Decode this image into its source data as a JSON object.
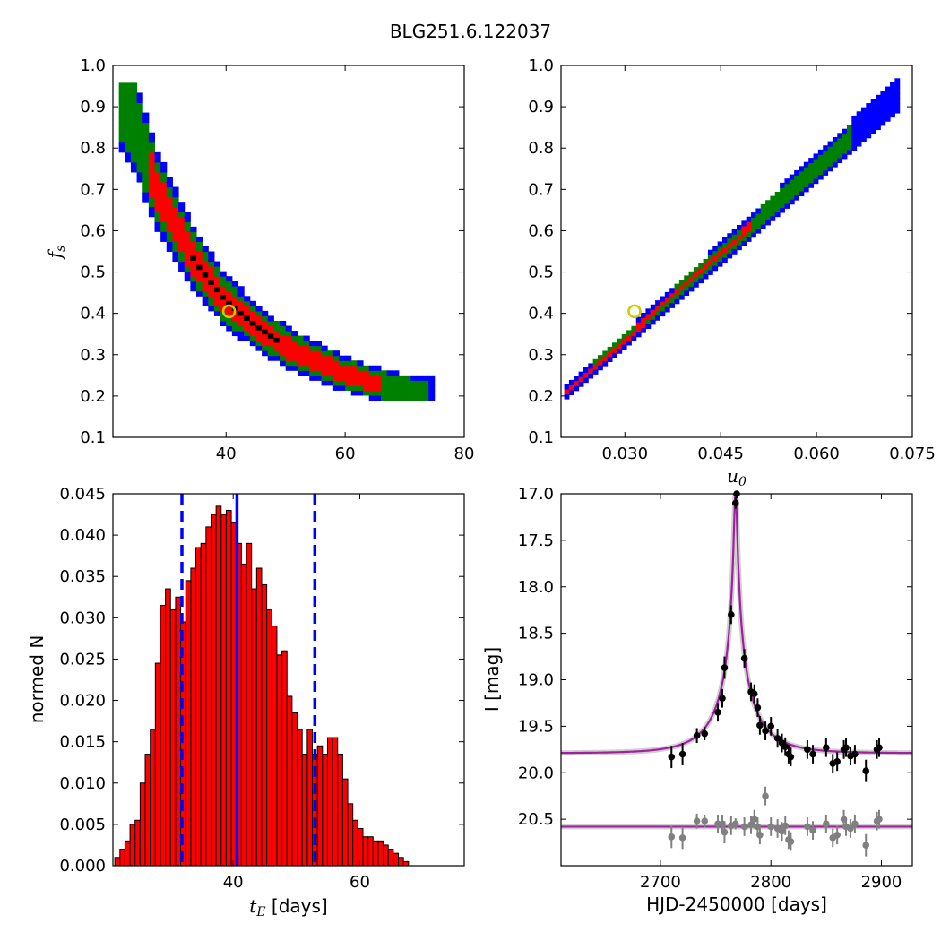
{
  "title": "BLG251.6.122037",
  "chart_data": [
    {
      "type": "heatmap",
      "panel": "top-left",
      "xlabel": "",
      "ylabel": "f_s",
      "xlim": [
        21,
        80
      ],
      "ylim": [
        0.1,
        1.0
      ],
      "xticks": [
        40,
        60,
        80
      ],
      "yticks": [
        0.1,
        0.2,
        0.3,
        0.4,
        0.5,
        0.6,
        0.7,
        0.8,
        0.9,
        1.0
      ],
      "levels": [
        {
          "name": "outer",
          "color": "#0000ff"
        },
        {
          "name": "middle",
          "color": "#008000"
        },
        {
          "name": "inner",
          "color": "#ff0000"
        },
        {
          "name": "core",
          "color": "#000000"
        }
      ],
      "ridge": [
        [
          22,
          0.93
        ],
        [
          25,
          0.85
        ],
        [
          28,
          0.71
        ],
        [
          32,
          0.6
        ],
        [
          35,
          0.52
        ],
        [
          40,
          0.43
        ],
        [
          45,
          0.37
        ],
        [
          50,
          0.32
        ],
        [
          55,
          0.285
        ],
        [
          60,
          0.255
        ],
        [
          65,
          0.23
        ],
        [
          70,
          0.215
        ],
        [
          75,
          0.205
        ]
      ],
      "best_fit": {
        "x": 40.5,
        "y": 0.405
      }
    },
    {
      "type": "heatmap",
      "panel": "top-right",
      "xlabel": "u_0",
      "ylabel": "",
      "xlim": [
        0.02,
        0.075
      ],
      "ylim": [
        0.1,
        1.0
      ],
      "xticks": [
        0.03,
        0.045,
        0.06,
        0.075
      ],
      "xtick_labels": [
        "0.030",
        "0.045",
        "0.060",
        "0.075"
      ],
      "yticks": [
        0.1,
        0.2,
        0.3,
        0.4,
        0.5,
        0.6,
        0.7,
        0.8,
        0.9,
        1.0
      ],
      "ridge_start": [
        0.0205,
        0.205
      ],
      "ridge_end": [
        0.073,
        0.935
      ],
      "best_fit": {
        "x": 0.0315,
        "y": 0.405
      }
    },
    {
      "type": "bar",
      "panel": "bottom-left",
      "xlabel": "t_E [days]",
      "ylabel": "normed N",
      "xlim": [
        21,
        76.5
      ],
      "ylim": [
        0,
        0.045
      ],
      "xticks": [
        40,
        60
      ],
      "yticks": [
        0.0,
        0.005,
        0.01,
        0.015,
        0.02,
        0.025,
        0.03,
        0.035,
        0.04,
        0.045
      ],
      "ytick_labels": [
        "0.000",
        "0.005",
        "0.010",
        "0.015",
        "0.020",
        "0.025",
        "0.030",
        "0.035",
        "0.040",
        "0.045"
      ],
      "bin_start": 21.3,
      "bin_width": 0.8,
      "values": [
        0.001,
        0.002,
        0.003,
        0.005,
        0.0055,
        0.01,
        0.0135,
        0.0165,
        0.0245,
        0.0315,
        0.0335,
        0.031,
        0.0325,
        0.0295,
        0.0345,
        0.036,
        0.0385,
        0.039,
        0.041,
        0.0425,
        0.0435,
        0.0425,
        0.043,
        0.0415,
        0.039,
        0.0365,
        0.039,
        0.0335,
        0.036,
        0.034,
        0.031,
        0.029,
        0.0255,
        0.026,
        0.0205,
        0.0185,
        0.0165,
        0.0135,
        0.0165,
        0.0135,
        0.0145,
        0.0135,
        0.0155,
        0.0155,
        0.0135,
        0.0105,
        0.0075,
        0.0055,
        0.0045,
        0.0035,
        0.0035,
        0.003,
        0.003,
        0.0025,
        0.002,
        0.0015,
        0.001,
        0.0005
      ],
      "bar_color": "#ff0000",
      "vlines": [
        {
          "x": 40.6,
          "style": "solid",
          "color": "#0000ff"
        },
        {
          "x": 31.9,
          "style": "dashed",
          "color": "#0000ff"
        },
        {
          "x": 52.9,
          "style": "dashed",
          "color": "#0000ff"
        }
      ]
    },
    {
      "type": "scatter",
      "panel": "bottom-right",
      "xlabel": "HJD-2450000 [days]",
      "ylabel": "I [mag]",
      "xlim": [
        2610,
        2928
      ],
      "ylim": [
        21.0,
        17.0
      ],
      "inverted_y": true,
      "xticks": [
        2700,
        2800,
        2900
      ],
      "yticks": [
        17.0,
        17.5,
        18.0,
        18.5,
        19.0,
        19.5,
        20.0,
        20.5
      ],
      "ytick_labels": [
        "17.0",
        "17.5",
        "18.0",
        "18.5",
        "19.0",
        "19.5",
        "20.0",
        "20.5"
      ],
      "model": {
        "t0": 2768,
        "tE": 40.6,
        "u0": 0.0315,
        "fs": 0.405,
        "Ibase": 19.79,
        "color": "#a020a0"
      },
      "residual_baseline": 20.58,
      "series": [
        {
          "color": "#000000",
          "points": [
            [
              2710,
              19.83,
              0.12
            ],
            [
              2720,
              19.8,
              0.12
            ],
            [
              2733,
              19.6,
              0.08
            ],
            [
              2740,
              19.58,
              0.07
            ],
            [
              2752,
              19.35,
              0.1
            ],
            [
              2756,
              19.2,
              0.1
            ],
            [
              2758,
              18.87,
              0.12
            ],
            [
              2764,
              18.3,
              0.1
            ],
            [
              2768,
              17.1,
              0.06
            ],
            [
              2769,
              17.0,
              0.05
            ],
            [
              2776,
              18.77,
              0.1
            ],
            [
              2782,
              19.13,
              0.1
            ],
            [
              2785,
              19.15,
              0.1
            ],
            [
              2788,
              19.3,
              0.1
            ],
            [
              2790,
              19.49,
              0.1
            ],
            [
              2795,
              19.55,
              0.1
            ],
            [
              2800,
              19.5,
              0.1
            ],
            [
              2806,
              19.63,
              0.1
            ],
            [
              2810,
              19.68,
              0.1
            ],
            [
              2813,
              19.72,
              0.1
            ],
            [
              2816,
              19.8,
              0.1
            ],
            [
              2818,
              19.83,
              0.1
            ],
            [
              2833,
              19.75,
              0.1
            ],
            [
              2838,
              19.8,
              0.1
            ],
            [
              2850,
              19.73,
              0.1
            ],
            [
              2856,
              19.9,
              0.1
            ],
            [
              2860,
              19.88,
              0.1
            ],
            [
              2866,
              19.75,
              0.1
            ],
            [
              2868,
              19.73,
              0.1
            ],
            [
              2872,
              19.82,
              0.1
            ],
            [
              2876,
              19.8,
              0.1
            ],
            [
              2886,
              19.98,
              0.12
            ],
            [
              2896,
              19.75,
              0.1
            ],
            [
              2898,
              19.73,
              0.1
            ]
          ]
        },
        {
          "color": "#808080",
          "points": [
            [
              2710,
              20.69,
              0.12
            ],
            [
              2720,
              20.7,
              0.12
            ],
            [
              2733,
              20.52,
              0.08
            ],
            [
              2740,
              20.52,
              0.07
            ],
            [
              2752,
              20.55,
              0.1
            ],
            [
              2756,
              20.55,
              0.1
            ],
            [
              2758,
              20.64,
              0.12
            ],
            [
              2764,
              20.57,
              0.1
            ],
            [
              2768,
              20.55,
              0.06
            ],
            [
              2776,
              20.58,
              0.1
            ],
            [
              2782,
              20.56,
              0.1
            ],
            [
              2785,
              20.5,
              0.1
            ],
            [
              2788,
              20.58,
              0.1
            ],
            [
              2790,
              20.67,
              0.1
            ],
            [
              2795,
              20.25,
              0.1
            ],
            [
              2800,
              20.58,
              0.1
            ],
            [
              2806,
              20.6,
              0.1
            ],
            [
              2810,
              20.63,
              0.1
            ],
            [
              2813,
              20.57,
              0.1
            ],
            [
              2816,
              20.72,
              0.1
            ],
            [
              2818,
              20.74,
              0.1
            ],
            [
              2833,
              20.58,
              0.1
            ],
            [
              2838,
              20.62,
              0.1
            ],
            [
              2850,
              20.55,
              0.1
            ],
            [
              2856,
              20.7,
              0.1
            ],
            [
              2860,
              20.67,
              0.1
            ],
            [
              2866,
              20.5,
              0.1
            ],
            [
              2868,
              20.58,
              0.1
            ],
            [
              2872,
              20.6,
              0.1
            ],
            [
              2876,
              20.55,
              0.1
            ],
            [
              2886,
              20.78,
              0.12
            ],
            [
              2896,
              20.52,
              0.1
            ],
            [
              2898,
              20.5,
              0.1
            ]
          ]
        }
      ]
    }
  ]
}
